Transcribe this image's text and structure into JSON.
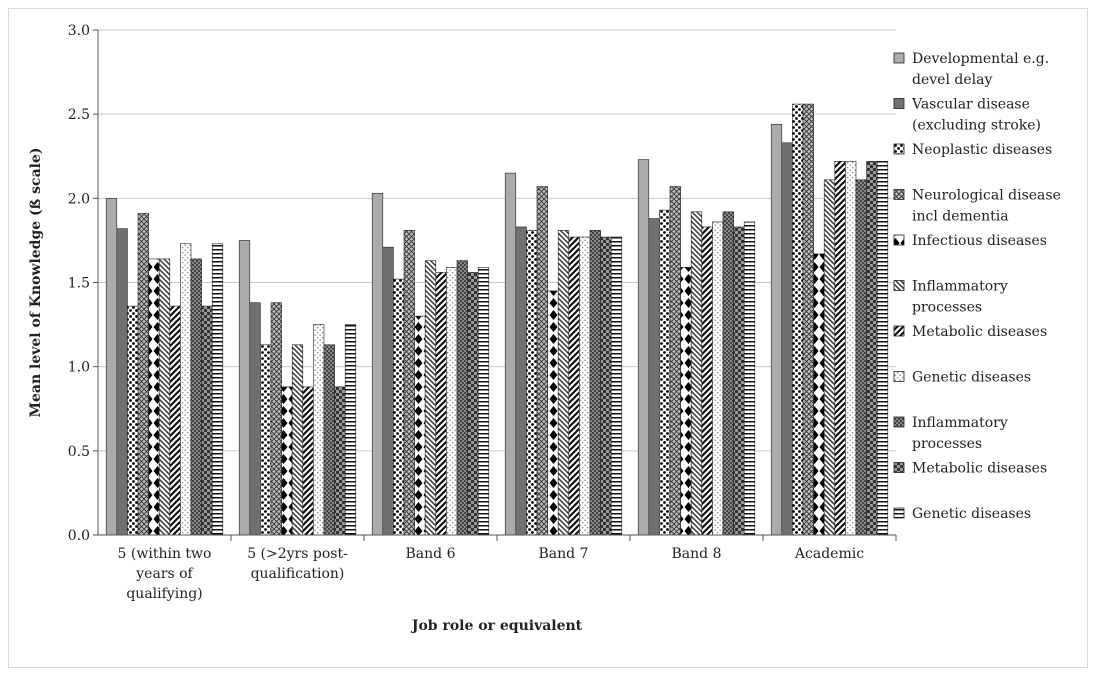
{
  "chart_data": {
    "type": "bar",
    "xlabel": "Job role or equivalent",
    "ylabel": "Mean level of Knowledge (ß scale)",
    "ylim": [
      0,
      3
    ],
    "yticks": [
      "0.0",
      "0.5",
      "1.0",
      "1.5",
      "2.0",
      "2.5",
      "3.0"
    ],
    "grid": true,
    "legend_position": "right",
    "categories": [
      [
        "5 (within two",
        "years of",
        "qualifying)"
      ],
      [
        "5 (>2yrs post-",
        "qualification)"
      ],
      [
        "Band 6"
      ],
      [
        "Band 7"
      ],
      [
        "Band 8"
      ],
      [
        "Academic"
      ]
    ],
    "series": [
      {
        "name": [
          "Developmental e.g.",
          "devel delay"
        ],
        "pattern": "solid-light",
        "values": [
          2.0,
          1.75,
          2.03,
          2.15,
          2.23,
          2.44
        ]
      },
      {
        "name": [
          "Vascular disease",
          "(excluding stroke)"
        ],
        "pattern": "solid-dark",
        "values": [
          1.82,
          1.38,
          1.71,
          1.83,
          1.88,
          2.33
        ]
      },
      {
        "name": [
          "Neoplastic diseases"
        ],
        "pattern": "dots",
        "values": [
          1.36,
          1.13,
          1.52,
          1.81,
          1.93,
          2.56
        ]
      },
      {
        "name": [
          "Neurological disease",
          "incl dementia"
        ],
        "pattern": "crosshatch",
        "values": [
          1.91,
          1.38,
          1.81,
          2.07,
          2.07,
          2.56
        ]
      },
      {
        "name": [
          "Infectious diseases"
        ],
        "pattern": "diamonds",
        "values": [
          1.64,
          0.88,
          1.3,
          1.45,
          1.59,
          1.67
        ]
      },
      {
        "name": [
          "Inflammatory",
          "processes"
        ],
        "pattern": "diag-back",
        "values": [
          1.64,
          1.13,
          1.63,
          1.81,
          1.92,
          2.11
        ]
      },
      {
        "name": [
          "Metabolic diseases"
        ],
        "pattern": "diag-fwd",
        "values": [
          1.36,
          0.88,
          1.56,
          1.77,
          1.83,
          2.22
        ]
      },
      {
        "name": [
          "Genetic diseases"
        ],
        "pattern": "sparse-dots",
        "values": [
          1.73,
          1.25,
          1.59,
          1.77,
          1.86,
          2.22
        ]
      },
      {
        "name": [
          "Inflammatory",
          "processes"
        ],
        "pattern": "dense-cross",
        "values": [
          1.64,
          1.13,
          1.63,
          1.81,
          1.92,
          2.11
        ]
      },
      {
        "name": [
          "Metabolic diseases"
        ],
        "pattern": "checker",
        "values": [
          1.36,
          0.88,
          1.56,
          1.77,
          1.83,
          2.22
        ]
      },
      {
        "name": [
          "Genetic diseases"
        ],
        "pattern": "hstripes",
        "values": [
          1.73,
          1.25,
          1.59,
          1.77,
          1.86,
          2.22
        ]
      }
    ]
  }
}
